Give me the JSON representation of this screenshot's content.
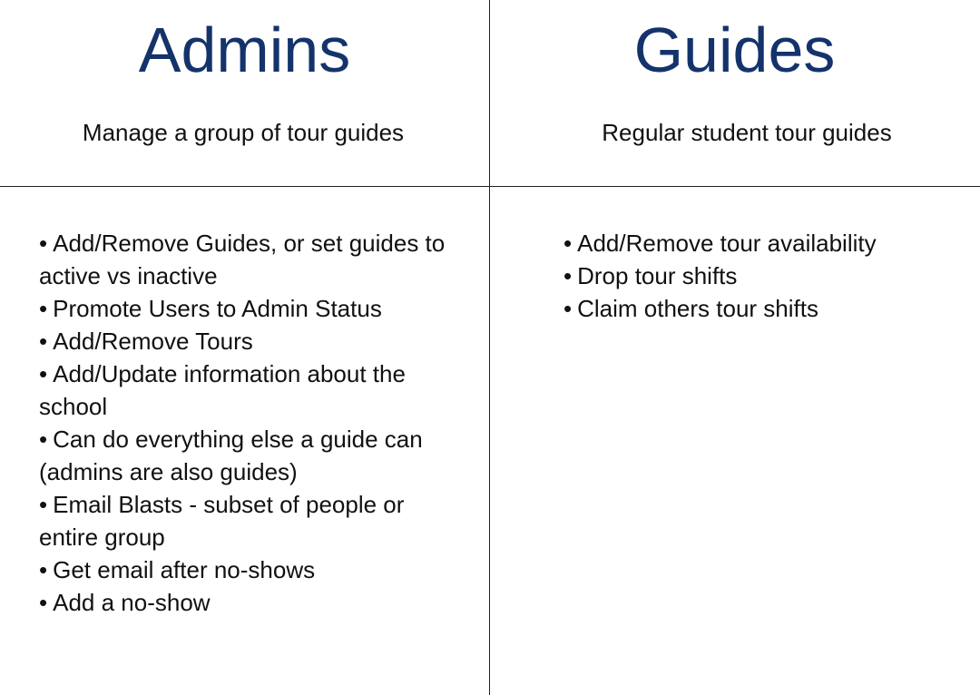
{
  "admins": {
    "title": "Admins",
    "subtitle": "Manage a group of tour guides",
    "items": [
      "Add/Remove Guides, or set guides to active vs inactive",
      "Promote Users to Admin Status",
      "Add/Remove Tours",
      "Add/Update information about the school",
      "Can do everything else a guide can (admins are also guides)",
      "Email Blasts - subset of people or entire group",
      "Get email after no-shows",
      "Add a no-show"
    ]
  },
  "guides": {
    "title": "Guides",
    "subtitle": "Regular student tour guides",
    "items": [
      "Add/Remove tour availability",
      "Drop tour shifts",
      "Claim others tour shifts"
    ]
  },
  "colors": {
    "heading": "#14336b",
    "text": "#111111",
    "divider": "#222222"
  },
  "bullet_symbol": "•"
}
